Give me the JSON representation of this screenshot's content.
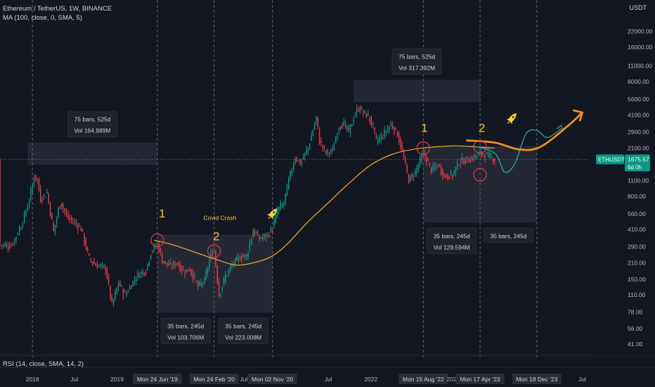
{
  "header": {
    "symbol_line": "Ethereum / TetherUS, 1W, BINANCE",
    "ma_line": "MA (100, close, 0, SMA, 5)",
    "rsi_line": "RSI (14, close, SMA, 14, 2)",
    "unit": "USDT"
  },
  "price_tag": {
    "symbol": "ETHUSDT",
    "value": "1675.57",
    "countdown": "6d 0h",
    "color": "#089981"
  },
  "colors": {
    "up": "#089981",
    "down": "#f23645",
    "ma": "#f7a82a",
    "arrow": "#f58c1c",
    "projection": "#26a69a",
    "marker_red": "#f23645",
    "annot_yellow": "#f5c518"
  },
  "chart_data": {
    "type": "candlestick",
    "scale": "log",
    "ylim": [
      35,
      32000
    ],
    "y_ticks": [
      "22000.00",
      "16000.00",
      "11000.00",
      "8000.00",
      "5600.00",
      "4100.00",
      "2900.00",
      "2100.00",
      "1500.00",
      "1100.00",
      "800.00",
      "560.00",
      "410.00",
      "290.00",
      "210.00",
      "150.00",
      "110.00",
      "78.00",
      "56.00",
      "41.00"
    ],
    "x_range": [
      "2017-08-14",
      "2024-08-05"
    ],
    "x_ticks": [
      {
        "date": "2018-01-01",
        "label": "2018",
        "highlight": false
      },
      {
        "date": "2018-07-01",
        "label": "Jul",
        "highlight": false
      },
      {
        "date": "2019-01-01",
        "label": "2019",
        "highlight": false
      },
      {
        "date": "2019-06-24",
        "label": "Mon 24 Jun '19",
        "highlight": true
      },
      {
        "date": "2020-02-24",
        "label": "Mon 24 Feb '20",
        "highlight": true
      },
      {
        "date": "2020-07-01",
        "label": "Jul",
        "highlight": false
      },
      {
        "date": "2020-11-02",
        "label": "Mon 02 Nov '20",
        "highlight": true
      },
      {
        "date": "2021-07-01",
        "label": "Jul",
        "highlight": false
      },
      {
        "date": "2022-01-01",
        "label": "2022",
        "highlight": false
      },
      {
        "date": "2022-08-15",
        "label": "Mon 15 Aug '22",
        "highlight": true
      },
      {
        "date": "2022-12-15",
        "label": "202",
        "highlight": false
      },
      {
        "date": "2023-04-17",
        "label": "Mon 17 Apr '23",
        "highlight": true
      },
      {
        "date": "2023-12-18",
        "label": "Mon 18 Dec '23",
        "highlight": true
      },
      {
        "date": "2024-07-01",
        "label": "Jul",
        "highlight": false
      }
    ],
    "vertical_lines": [
      "2018-01-01",
      "2019-06-24",
      "2020-02-24",
      "2020-11-02",
      "2022-08-15",
      "2023-04-17",
      "2023-12-18"
    ],
    "last_price": 1675.57,
    "price_path": [
      [
        "2017-08-14",
        300
      ],
      [
        "2017-10-01",
        295
      ],
      [
        "2017-11-15",
        450
      ],
      [
        "2017-12-20",
        760
      ],
      [
        "2018-01-08",
        1200
      ],
      [
        "2018-01-22",
        1100
      ],
      [
        "2018-02-05",
        760
      ],
      [
        "2018-03-05",
        860
      ],
      [
        "2018-04-02",
        390
      ],
      [
        "2018-05-01",
        720
      ],
      [
        "2018-06-01",
        520
      ],
      [
        "2018-07-01",
        470
      ],
      [
        "2018-08-01",
        410
      ],
      [
        "2018-09-01",
        230
      ],
      [
        "2018-10-01",
        200
      ],
      [
        "2018-11-12",
        190
      ],
      [
        "2018-12-10",
        90
      ],
      [
        "2019-01-07",
        140
      ],
      [
        "2019-02-04",
        110
      ],
      [
        "2019-03-04",
        135
      ],
      [
        "2019-04-01",
        165
      ],
      [
        "2019-05-06",
        180
      ],
      [
        "2019-05-27",
        260
      ],
      [
        "2019-06-24",
        310
      ],
      [
        "2019-07-15",
        220
      ],
      [
        "2019-08-19",
        195
      ],
      [
        "2019-09-16",
        210
      ],
      [
        "2019-10-14",
        175
      ],
      [
        "2019-11-11",
        185
      ],
      [
        "2019-12-16",
        130
      ],
      [
        "2020-01-13",
        145
      ],
      [
        "2020-02-10",
        250
      ],
      [
        "2020-02-24",
        270
      ],
      [
        "2020-03-16",
        110
      ],
      [
        "2020-04-13",
        160
      ],
      [
        "2020-05-11",
        200
      ],
      [
        "2020-06-15",
        235
      ],
      [
        "2020-07-13",
        240
      ],
      [
        "2020-08-10",
        400
      ],
      [
        "2020-09-07",
        340
      ],
      [
        "2020-10-12",
        370
      ],
      [
        "2020-11-02",
        420
      ],
      [
        "2020-11-23",
        600
      ],
      [
        "2020-12-21",
        700
      ],
      [
        "2021-01-11",
        1100
      ],
      [
        "2021-02-08",
        1750
      ],
      [
        "2021-03-01",
        1550
      ],
      [
        "2021-04-05",
        2100
      ],
      [
        "2021-05-10",
        3900
      ],
      [
        "2021-05-24",
        2400
      ],
      [
        "2021-06-21",
        1900
      ],
      [
        "2021-07-19",
        2000
      ],
      [
        "2021-08-16",
        3300
      ],
      [
        "2021-09-06",
        3400
      ],
      [
        "2021-09-27",
        2900
      ],
      [
        "2021-10-18",
        3900
      ],
      [
        "2021-11-08",
        4750
      ],
      [
        "2021-11-29",
        4300
      ],
      [
        "2021-12-20",
        4000
      ],
      [
        "2022-01-10",
        3200
      ],
      [
        "2022-01-24",
        2400
      ],
      [
        "2022-02-21",
        2700
      ],
      [
        "2022-03-28",
        3400
      ],
      [
        "2022-04-25",
        2800
      ],
      [
        "2022-05-16",
        1950
      ],
      [
        "2022-06-13",
        1100
      ],
      [
        "2022-07-11",
        1300
      ],
      [
        "2022-08-15",
        1900
      ],
      [
        "2022-09-19",
        1350
      ],
      [
        "2022-10-17",
        1500
      ],
      [
        "2022-11-14",
        1200
      ],
      [
        "2022-12-19",
        1220
      ],
      [
        "2023-01-16",
        1600
      ],
      [
        "2023-02-13",
        1650
      ],
      [
        "2023-03-13",
        1700
      ],
      [
        "2023-04-17",
        1900
      ],
      [
        "2023-05-15",
        1810
      ],
      [
        "2023-06-12",
        1700
      ],
      [
        "2023-06-19",
        1675.57
      ]
    ],
    "ma_100": [
      [
        "2019-06-10",
        330
      ],
      [
        "2019-09-01",
        300
      ],
      [
        "2019-12-01",
        260
      ],
      [
        "2020-03-01",
        225
      ],
      [
        "2020-06-01",
        200
      ],
      [
        "2020-09-01",
        215
      ],
      [
        "2020-11-01",
        240
      ],
      [
        "2021-01-01",
        300
      ],
      [
        "2021-04-01",
        470
      ],
      [
        "2021-07-01",
        700
      ],
      [
        "2021-10-01",
        1050
      ],
      [
        "2022-01-01",
        1500
      ],
      [
        "2022-04-01",
        1850
      ],
      [
        "2022-07-01",
        2050
      ],
      [
        "2022-10-01",
        2150
      ],
      [
        "2023-01-01",
        2200
      ],
      [
        "2023-04-01",
        2150
      ],
      [
        "2023-06-19",
        2100
      ]
    ],
    "projection_green": [
      [
        "2023-03-15",
        2200
      ],
      [
        "2023-06-19",
        1900
      ],
      [
        "2023-08-01",
        1300
      ],
      [
        "2023-09-15",
        1550
      ],
      [
        "2023-11-01",
        2800
      ],
      [
        "2023-12-18",
        3000
      ],
      [
        "2024-02-01",
        2600
      ],
      [
        "2024-04-01",
        3100
      ]
    ],
    "projection_orange": [
      [
        "2023-02-20",
        2450
      ],
      [
        "2023-06-19",
        2350
      ],
      [
        "2023-10-01",
        2050
      ],
      [
        "2024-01-01",
        2150
      ],
      [
        "2024-05-01",
        3300
      ],
      [
        "2024-07-01",
        4300
      ]
    ],
    "ranges": [
      {
        "x0": "2017-12-11",
        "x1": "2019-06-24",
        "y0": 1500,
        "y1": 2350,
        "label1": "75 bars, 525d",
        "label2": "Vol 164.989M",
        "label_pos": "above"
      },
      {
        "x0": "2019-06-24",
        "x1": "2020-02-24",
        "y0": 77,
        "y1": 370,
        "label1": "35 bars, 245d",
        "label2": "Vol 103.706M",
        "label_pos": "below"
      },
      {
        "x0": "2020-02-24",
        "x1": "2020-11-02",
        "y0": 77,
        "y1": 370,
        "label1": "35 bars, 245d",
        "label2": "Vol 223.008M",
        "label_pos": "below"
      },
      {
        "x0": "2021-10-18",
        "x1": "2023-04-17",
        "y0": 5300,
        "y1": 8300,
        "label1": "75 bars, 525d",
        "label2": "Vol 317.392M",
        "label_pos": "above"
      },
      {
        "x0": "2022-08-15",
        "x1": "2023-04-17",
        "y0": 470,
        "y1": 2200,
        "label1": "35 bars, 245d",
        "label2": "Vol 129.594M",
        "label_pos": "below"
      },
      {
        "x0": "2023-04-17",
        "x1": "2023-12-18",
        "y0": 470,
        "y1": 2200,
        "label1": "35 bars, 245d",
        "label2": "",
        "label_pos": "below"
      }
    ],
    "annotations": [
      {
        "text": "1",
        "date": "2019-07-15",
        "price": 520
      },
      {
        "text": "2",
        "date": "2020-03-05",
        "price": 330
      },
      {
        "text": "Covid Crash",
        "date": "2020-03-20",
        "price": 495
      },
      {
        "text": "1",
        "date": "2022-08-20",
        "price": 2900
      },
      {
        "text": "2",
        "date": "2023-04-25",
        "price": 2900
      }
    ],
    "circles": [
      {
        "date": "2019-06-24",
        "price": 330
      },
      {
        "date": "2020-02-24",
        "price": 265
      },
      {
        "date": "2022-08-15",
        "price": 2100
      },
      {
        "date": "2023-04-17",
        "price": 2150
      },
      {
        "date": "2023-04-17",
        "price": 1230
      }
    ],
    "rockets": [
      {
        "date": "2020-11-02",
        "price": 560
      },
      {
        "date": "2023-09-01",
        "price": 3800
      }
    ]
  }
}
